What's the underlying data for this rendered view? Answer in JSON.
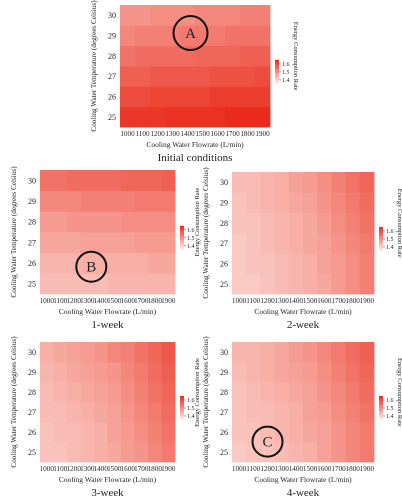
{
  "chart_data": [
    {
      "type": "heatmap",
      "title": "Initial conditions",
      "x_label": "Cooling Water Flowrate (L/min)",
      "y_label": "Cooling Water Temperature (degrees Celsius)",
      "categories": [
        1000,
        1100,
        1200,
        1300,
        1400,
        1500,
        1600,
        1700,
        1800,
        1900
      ],
      "y_categories": [
        25,
        26,
        27,
        28,
        29,
        30
      ],
      "values": [
        [
          1.63,
          1.63,
          1.63,
          1.64,
          1.64,
          1.64,
          1.64,
          1.65,
          1.65,
          1.65
        ],
        [
          1.6,
          1.6,
          1.61,
          1.61,
          1.61,
          1.61,
          1.62,
          1.62,
          1.62,
          1.62
        ],
        [
          1.57,
          1.57,
          1.58,
          1.58,
          1.58,
          1.58,
          1.59,
          1.59,
          1.59,
          1.6
        ],
        [
          1.54,
          1.55,
          1.55,
          1.55,
          1.55,
          1.56,
          1.56,
          1.56,
          1.57,
          1.57
        ],
        [
          1.51,
          1.52,
          1.52,
          1.52,
          1.53,
          1.53,
          1.53,
          1.54,
          1.54,
          1.54
        ],
        [
          1.49,
          1.49,
          1.5,
          1.5,
          1.5,
          1.51,
          1.51,
          1.51,
          1.52,
          1.52
        ]
      ],
      "colorbar": {
        "label": "Energy Consumption Rate",
        "lim": [
          1.35,
          1.65
        ],
        "ticks": [
          1.4,
          1.5,
          1.6
        ],
        "low_color": "#fdf1ec",
        "high_color": "#ea2a1a"
      },
      "annotation": "A"
    },
    {
      "type": "heatmap",
      "title": "1-week",
      "x_label": "Cooling Water Flowrate (L/min)",
      "y_label": "Cooling Water Temperature (degrees Celsius)",
      "categories": [
        1000,
        1100,
        1200,
        1300,
        1400,
        1500,
        1600,
        1700,
        1800,
        1900
      ],
      "y_categories": [
        25,
        26,
        27,
        28,
        29,
        30
      ],
      "values": [
        [
          1.43,
          1.43,
          1.43,
          1.43,
          1.43,
          1.44,
          1.44,
          1.44,
          1.44,
          1.44
        ],
        [
          1.44,
          1.44,
          1.44,
          1.45,
          1.45,
          1.45,
          1.45,
          1.45,
          1.46,
          1.46
        ],
        [
          1.46,
          1.46,
          1.46,
          1.47,
          1.47,
          1.47,
          1.47,
          1.48,
          1.48,
          1.48
        ],
        [
          1.48,
          1.48,
          1.49,
          1.49,
          1.49,
          1.49,
          1.5,
          1.5,
          1.5,
          1.5
        ],
        [
          1.51,
          1.51,
          1.51,
          1.52,
          1.52,
          1.52,
          1.52,
          1.53,
          1.53,
          1.53
        ],
        [
          1.54,
          1.54,
          1.55,
          1.55,
          1.55,
          1.55,
          1.56,
          1.56,
          1.56,
          1.57
        ]
      ],
      "colorbar": {
        "label": "Energy Consumption Rate",
        "lim": [
          1.35,
          1.65
        ],
        "ticks": [
          1.4,
          1.5,
          1.6
        ],
        "low_color": "#fdf1ec",
        "high_color": "#ea2a1a"
      },
      "annotation": "B"
    },
    {
      "type": "heatmap",
      "title": "2-week",
      "x_label": "Cooling Water Flowrate (L/min)",
      "y_label": "Cooling Water Temperature (degrees Celsius)",
      "categories": [
        1000,
        1100,
        1200,
        1300,
        1400,
        1500,
        1600,
        1700,
        1800,
        1900
      ],
      "y_categories": [
        25,
        26,
        27,
        28,
        29,
        30
      ],
      "values": [
        [
          1.41,
          1.41,
          1.42,
          1.43,
          1.44,
          1.45,
          1.46,
          1.48,
          1.5,
          1.52
        ],
        [
          1.41,
          1.42,
          1.42,
          1.43,
          1.44,
          1.45,
          1.47,
          1.48,
          1.5,
          1.52
        ],
        [
          1.41,
          1.42,
          1.43,
          1.44,
          1.45,
          1.46,
          1.47,
          1.49,
          1.51,
          1.53
        ],
        [
          1.42,
          1.42,
          1.43,
          1.44,
          1.45,
          1.46,
          1.48,
          1.5,
          1.52,
          1.54
        ],
        [
          1.42,
          1.43,
          1.44,
          1.45,
          1.46,
          1.47,
          1.49,
          1.51,
          1.53,
          1.55
        ],
        [
          1.43,
          1.43,
          1.44,
          1.45,
          1.47,
          1.48,
          1.5,
          1.52,
          1.54,
          1.56
        ]
      ],
      "colorbar": {
        "label": "Energy Consumption Rate",
        "lim": [
          1.35,
          1.65
        ],
        "ticks": [
          1.4,
          1.5,
          1.6
        ],
        "low_color": "#fdf1ec",
        "high_color": "#ea2a1a"
      }
    },
    {
      "type": "heatmap",
      "title": "3-week",
      "x_label": "Cooling Water Flowrate (L/min)",
      "y_label": "Cooling Water Temperature (degrees Celsius)",
      "categories": [
        1000,
        1100,
        1200,
        1300,
        1400,
        1500,
        1600,
        1700,
        1800,
        1900
      ],
      "y_categories": [
        25,
        26,
        27,
        28,
        29,
        30
      ],
      "values": [
        [
          1.42,
          1.42,
          1.43,
          1.44,
          1.45,
          1.46,
          1.48,
          1.49,
          1.51,
          1.53
        ],
        [
          1.42,
          1.43,
          1.43,
          1.44,
          1.45,
          1.47,
          1.48,
          1.5,
          1.52,
          1.54
        ],
        [
          1.43,
          1.43,
          1.44,
          1.45,
          1.46,
          1.47,
          1.49,
          1.51,
          1.53,
          1.55
        ],
        [
          1.43,
          1.44,
          1.45,
          1.46,
          1.47,
          1.48,
          1.5,
          1.52,
          1.54,
          1.56
        ],
        [
          1.44,
          1.45,
          1.46,
          1.47,
          1.48,
          1.49,
          1.51,
          1.53,
          1.55,
          1.57
        ],
        [
          1.45,
          1.46,
          1.47,
          1.48,
          1.49,
          1.51,
          1.52,
          1.54,
          1.56,
          1.58
        ]
      ],
      "colorbar": {
        "label": "Energy Consumption Rate",
        "lim": [
          1.35,
          1.65
        ],
        "ticks": [
          1.4,
          1.5,
          1.6
        ],
        "low_color": "#fdf1ec",
        "high_color": "#ea2a1a"
      }
    },
    {
      "type": "heatmap",
      "title": "4-week",
      "x_label": "Cooling Water Flowrate (L/min)",
      "y_label": "Cooling Water Temperature (degrees Celsius)",
      "categories": [
        1000,
        1100,
        1200,
        1300,
        1400,
        1500,
        1600,
        1700,
        1800,
        1900
      ],
      "y_categories": [
        25,
        26,
        27,
        28,
        29,
        30
      ],
      "values": [
        [
          1.41,
          1.42,
          1.42,
          1.43,
          1.44,
          1.45,
          1.47,
          1.49,
          1.51,
          1.53
        ],
        [
          1.42,
          1.42,
          1.43,
          1.44,
          1.45,
          1.46,
          1.47,
          1.49,
          1.51,
          1.53
        ],
        [
          1.42,
          1.43,
          1.43,
          1.44,
          1.45,
          1.47,
          1.48,
          1.5,
          1.52,
          1.54
        ],
        [
          1.42,
          1.43,
          1.44,
          1.45,
          1.46,
          1.47,
          1.49,
          1.51,
          1.53,
          1.55
        ],
        [
          1.43,
          1.44,
          1.45,
          1.46,
          1.47,
          1.48,
          1.5,
          1.52,
          1.54,
          1.56
        ],
        [
          1.44,
          1.44,
          1.45,
          1.46,
          1.48,
          1.49,
          1.51,
          1.53,
          1.55,
          1.57
        ]
      ],
      "colorbar": {
        "label": "Energy Consumption Rate",
        "lim": [
          1.35,
          1.65
        ],
        "ticks": [
          1.4,
          1.5,
          1.6
        ],
        "low_color": "#fdf1ec",
        "high_color": "#ea2a1a"
      },
      "annotation": "C"
    }
  ]
}
